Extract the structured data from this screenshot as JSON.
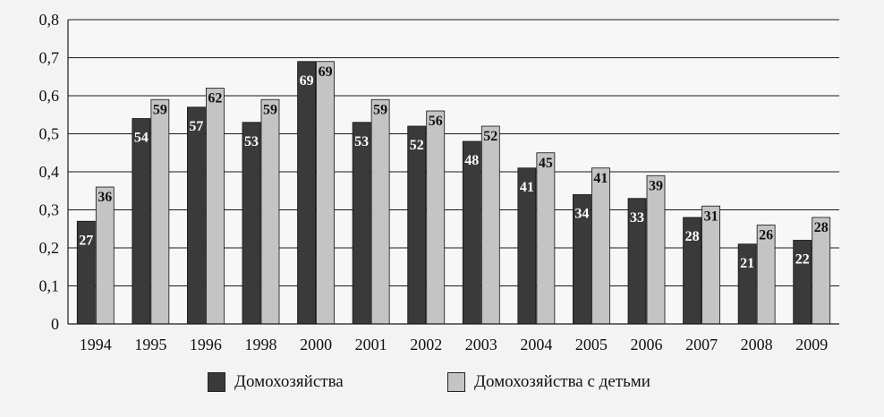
{
  "chart_data": {
    "type": "bar",
    "categories": [
      "1994",
      "1995",
      "1996",
      "1998",
      "2000",
      "2001",
      "2002",
      "2003",
      "2004",
      "2005",
      "2006",
      "2007",
      "2008",
      "2009"
    ],
    "series": [
      {
        "name": "Домохозяйства",
        "values": [
          0.27,
          0.54,
          0.57,
          0.53,
          0.69,
          0.53,
          0.52,
          0.48,
          0.41,
          0.34,
          0.33,
          0.28,
          0.21,
          0.22
        ],
        "labels": [
          "27",
          "54",
          "57",
          "53",
          "69",
          "53",
          "52",
          "48",
          "41",
          "34",
          "33",
          "28",
          "21",
          "22"
        ],
        "color": "#3a3a3a"
      },
      {
        "name": "Домохозяйства с детьми",
        "values": [
          0.36,
          0.59,
          0.62,
          0.59,
          0.69,
          0.59,
          0.56,
          0.52,
          0.45,
          0.41,
          0.39,
          0.31,
          0.26,
          0.28
        ],
        "labels": [
          "36",
          "59",
          "62",
          "59",
          "69",
          "59",
          "56",
          "52",
          "45",
          "41",
          "39",
          "31",
          "26",
          "28"
        ],
        "color": "#c4c4c4"
      }
    ],
    "yticks": [
      "0",
      "0,1",
      "0,2",
      "0,3",
      "0,4",
      "0,5",
      "0,6",
      "0,7",
      "0,8"
    ],
    "ylim": [
      0,
      0.8
    ],
    "grid": true,
    "legend": "bottom"
  }
}
